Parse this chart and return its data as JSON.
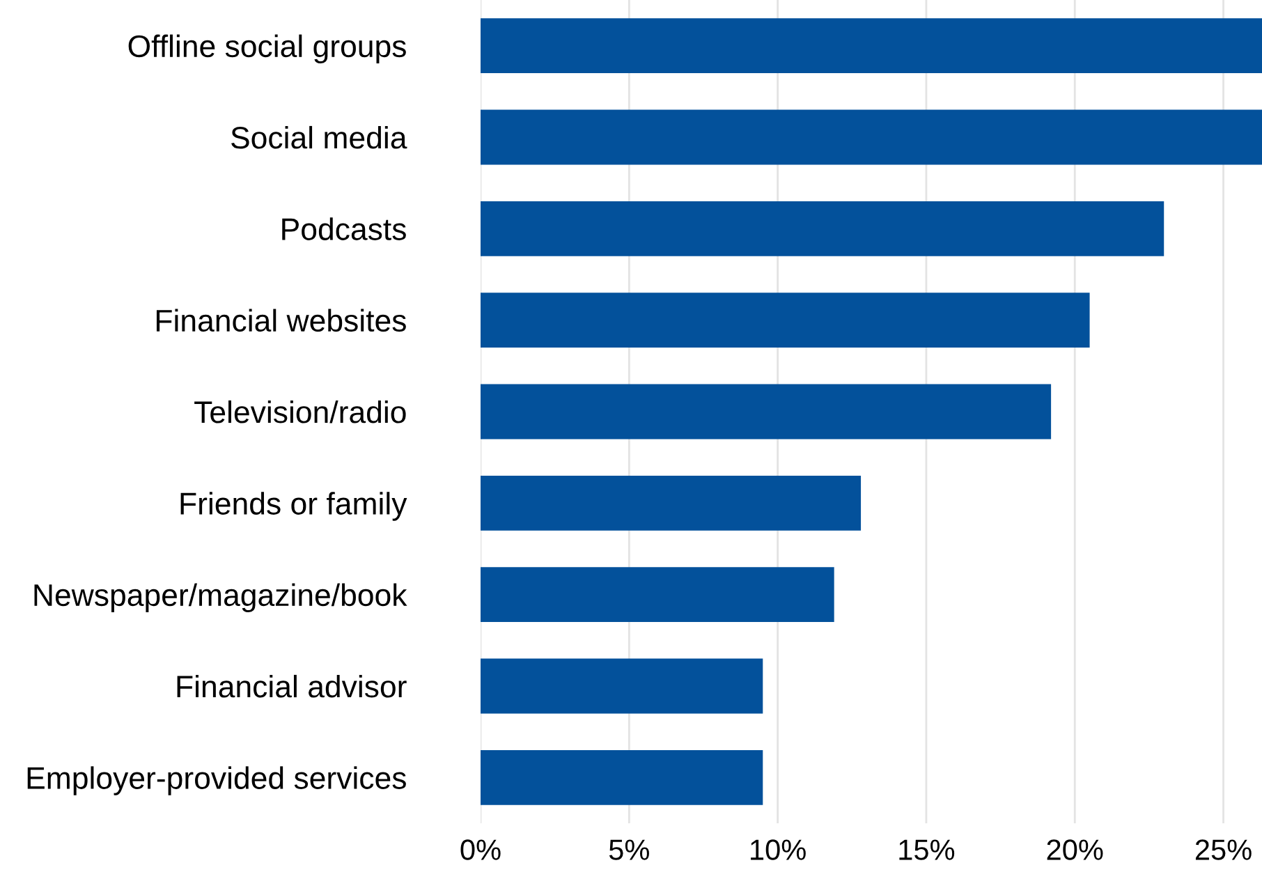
{
  "chart_data": {
    "type": "bar",
    "orientation": "horizontal",
    "categories": [
      "Offline social groups",
      "Social media",
      "Podcasts",
      "Financial websites",
      "Television/radio",
      "Friends or family",
      "Newspaper/magazine/book",
      "Financial advisor",
      "Employer-provided services"
    ],
    "values": [
      26.3,
      26.3,
      23.0,
      20.5,
      19.2,
      12.8,
      11.9,
      9.5,
      9.5
    ],
    "color": "#03519b",
    "xlim": [
      0,
      26.3
    ],
    "xticks": [
      {
        "value": 0,
        "label": "0%"
      },
      {
        "value": 5,
        "label": "5%"
      },
      {
        "value": 10,
        "label": "10%"
      },
      {
        "value": 15,
        "label": "15%"
      },
      {
        "value": 20,
        "label": "20%"
      },
      {
        "value": 25,
        "label": "25%"
      }
    ],
    "grid": "x"
  }
}
